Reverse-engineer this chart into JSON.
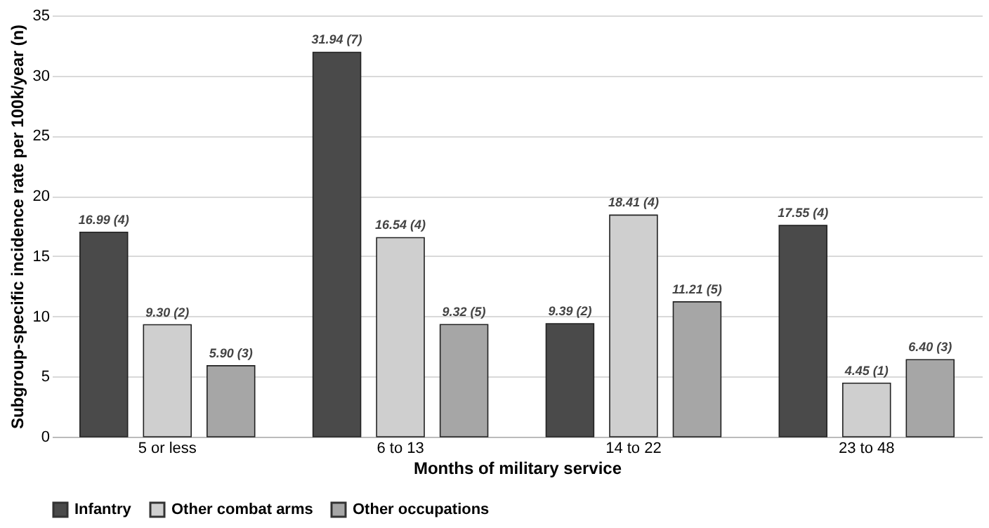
{
  "chart_data": {
    "type": "bar",
    "xlabel": "Months of military service",
    "ylabel": "Subgroup-specific incidence rate per 100k/year (n)",
    "categories": [
      "5 or less",
      "6 to 13",
      "14 to 22",
      "23 to 48"
    ],
    "series": [
      {
        "name": "Infantry",
        "color": "#4a4a4a",
        "values": [
          16.99,
          31.94,
          9.39,
          17.55
        ],
        "value_labels": [
          "16.99 (4)",
          "31.94 (7)",
          "9.39 (2)",
          "17.55 (4)"
        ]
      },
      {
        "name": "Other combat arms",
        "color": "#cfcfcf",
        "values": [
          9.3,
          16.54,
          18.41,
          4.45
        ],
        "value_labels": [
          "9.30 (2)",
          "16.54 (4)",
          "18.41 (4)",
          "4.45 (1)"
        ]
      },
      {
        "name": "Other occupations",
        "color": "#a6a6a6",
        "values": [
          5.9,
          9.32,
          11.21,
          6.4
        ],
        "value_labels": [
          "5.90 (3)",
          "9.32 (5)",
          "11.21 (5)",
          "6.40 (3)"
        ]
      }
    ],
    "ylim": [
      0,
      35
    ],
    "yticks": [
      0,
      5,
      10,
      15,
      20,
      25,
      30,
      35
    ],
    "grid": "y",
    "legend": "bottom"
  }
}
